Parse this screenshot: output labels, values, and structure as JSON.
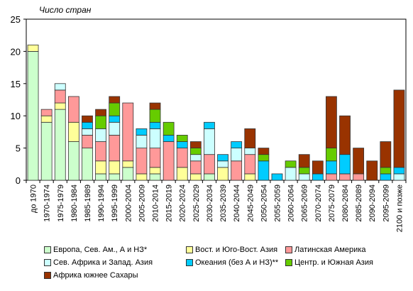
{
  "chart_data": {
    "type": "bar",
    "stacked": true,
    "title": "",
    "ylabel": "Число стран",
    "xlabel": "",
    "ylim": [
      0,
      25
    ],
    "yticks": [
      0,
      5,
      10,
      15,
      20,
      25
    ],
    "grid": false,
    "legend_position": "bottom",
    "categories": [
      "до 1970",
      "1970-1974",
      "1975-1979",
      "1980-1984",
      "1985-1989",
      "1990-1994",
      "1995-1999",
      "2000-2004",
      "2005-2009",
      "2010-2014",
      "2015-2019",
      "2020-2024",
      "2025-2029",
      "2030-2034",
      "2035-2039",
      "2040-2044",
      "2045-2049",
      "2050-2054",
      "2055-2059",
      "2060-2064",
      "2065-2069",
      "2070-2074",
      "2075-2079",
      "2080-2084",
      "2085-2089",
      "2090-2094",
      "2095-2099",
      "2100 и позже"
    ],
    "series": [
      {
        "name": "Европа, Сев. Ам., А и НЗ*",
        "color": "#ccffcc",
        "values": [
          20,
          9,
          11,
          6,
          5,
          1,
          1,
          2,
          0,
          1,
          0,
          0,
          0,
          1,
          0,
          0,
          0,
          0,
          0,
          0,
          0,
          0,
          0,
          0,
          0,
          0,
          0,
          0
        ]
      },
      {
        "name": "Вост. и Юго-Вост. Азия",
        "color": "#ffff99",
        "values": [
          1,
          1,
          1,
          3,
          0,
          2,
          2,
          1,
          1,
          1,
          0,
          2,
          1,
          0,
          2,
          0,
          1,
          0,
          0,
          0,
          0,
          0,
          0,
          0,
          0,
          0,
          0,
          0
        ]
      },
      {
        "name": "Латинская Америка",
        "color": "#ff9999",
        "values": [
          0,
          1,
          2,
          4,
          2,
          3,
          4,
          9,
          4,
          3,
          6,
          3,
          2,
          3,
          0,
          3,
          3,
          0,
          0,
          0,
          0,
          0,
          1,
          1,
          1,
          0,
          0,
          0
        ]
      },
      {
        "name": "Сев. Африка и Запад. Азия",
        "color": "#ccffff",
        "values": [
          0,
          0,
          1,
          0,
          1,
          2,
          2,
          0,
          2,
          3,
          0,
          0,
          1,
          4,
          1,
          2,
          1,
          0,
          0,
          2,
          1,
          0,
          0,
          0,
          0,
          0,
          0,
          1
        ]
      },
      {
        "name": "Океания (без А и НЗ)**",
        "color": "#00ccff",
        "values": [
          0,
          0,
          0,
          0,
          1,
          0,
          1,
          0,
          1,
          1,
          1,
          1,
          0,
          1,
          1,
          1,
          0,
          3,
          1,
          0,
          0,
          1,
          2,
          3,
          0,
          0,
          1,
          1
        ]
      },
      {
        "name": "Центр. и Южная Азия",
        "color": "#66cc00",
        "values": [
          0,
          0,
          0,
          0,
          0,
          2,
          2,
          0,
          0,
          2,
          2,
          1,
          1,
          0,
          0,
          0,
          0,
          1,
          0,
          1,
          1,
          0,
          2,
          0,
          0,
          0,
          1,
          0
        ]
      },
      {
        "name": "Африка южнее Сахары",
        "color": "#993300",
        "values": [
          0,
          0,
          0,
          0,
          1,
          1,
          1,
          0,
          0,
          1,
          0,
          0,
          1,
          0,
          0,
          0,
          3,
          1,
          0,
          0,
          2,
          2,
          8,
          6,
          4,
          3,
          4,
          12
        ]
      }
    ]
  }
}
